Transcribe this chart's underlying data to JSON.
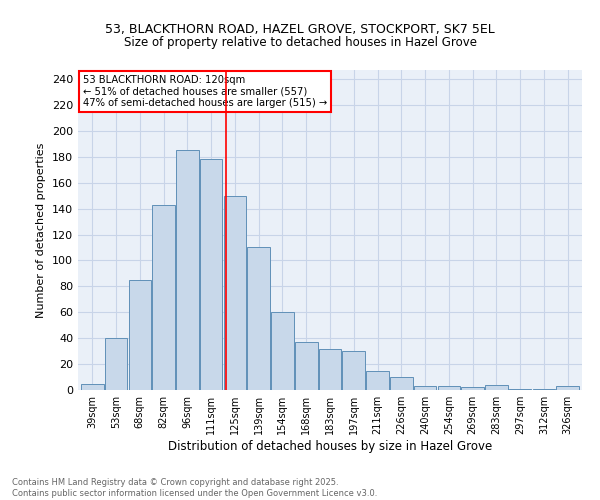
{
  "title1": "53, BLACKTHORN ROAD, HAZEL GROVE, STOCKPORT, SK7 5EL",
  "title2": "Size of property relative to detached houses in Hazel Grove",
  "xlabel": "Distribution of detached houses by size in Hazel Grove",
  "ylabel": "Number of detached properties",
  "footer1": "Contains HM Land Registry data © Crown copyright and database right 2025.",
  "footer2": "Contains public sector information licensed under the Open Government Licence v3.0.",
  "categories": [
    "39sqm",
    "53sqm",
    "68sqm",
    "82sqm",
    "96sqm",
    "111sqm",
    "125sqm",
    "139sqm",
    "154sqm",
    "168sqm",
    "183sqm",
    "197sqm",
    "211sqm",
    "226sqm",
    "240sqm",
    "254sqm",
    "269sqm",
    "283sqm",
    "297sqm",
    "312sqm",
    "326sqm"
  ],
  "values": [
    5,
    40,
    85,
    143,
    185,
    178,
    150,
    110,
    60,
    37,
    32,
    30,
    15,
    10,
    3,
    3,
    2,
    4,
    1,
    1,
    3
  ],
  "bar_color": "#c8d8ea",
  "bar_edge_color": "#6090b8",
  "grid_color": "#c8d4e8",
  "background_color": "#eaf0f8",
  "vline_color": "red",
  "annotation_title": "53 BLACKTHORN ROAD: 120sqm",
  "annotation_line1": "← 51% of detached houses are smaller (557)",
  "annotation_line2": "47% of semi-detached houses are larger (515) →",
  "annotation_box_color": "white",
  "annotation_box_edge": "red",
  "ylim": [
    0,
    247
  ],
  "yticks": [
    0,
    20,
    40,
    60,
    80,
    100,
    120,
    140,
    160,
    180,
    200,
    220,
    240
  ],
  "vline_index": 5.64
}
